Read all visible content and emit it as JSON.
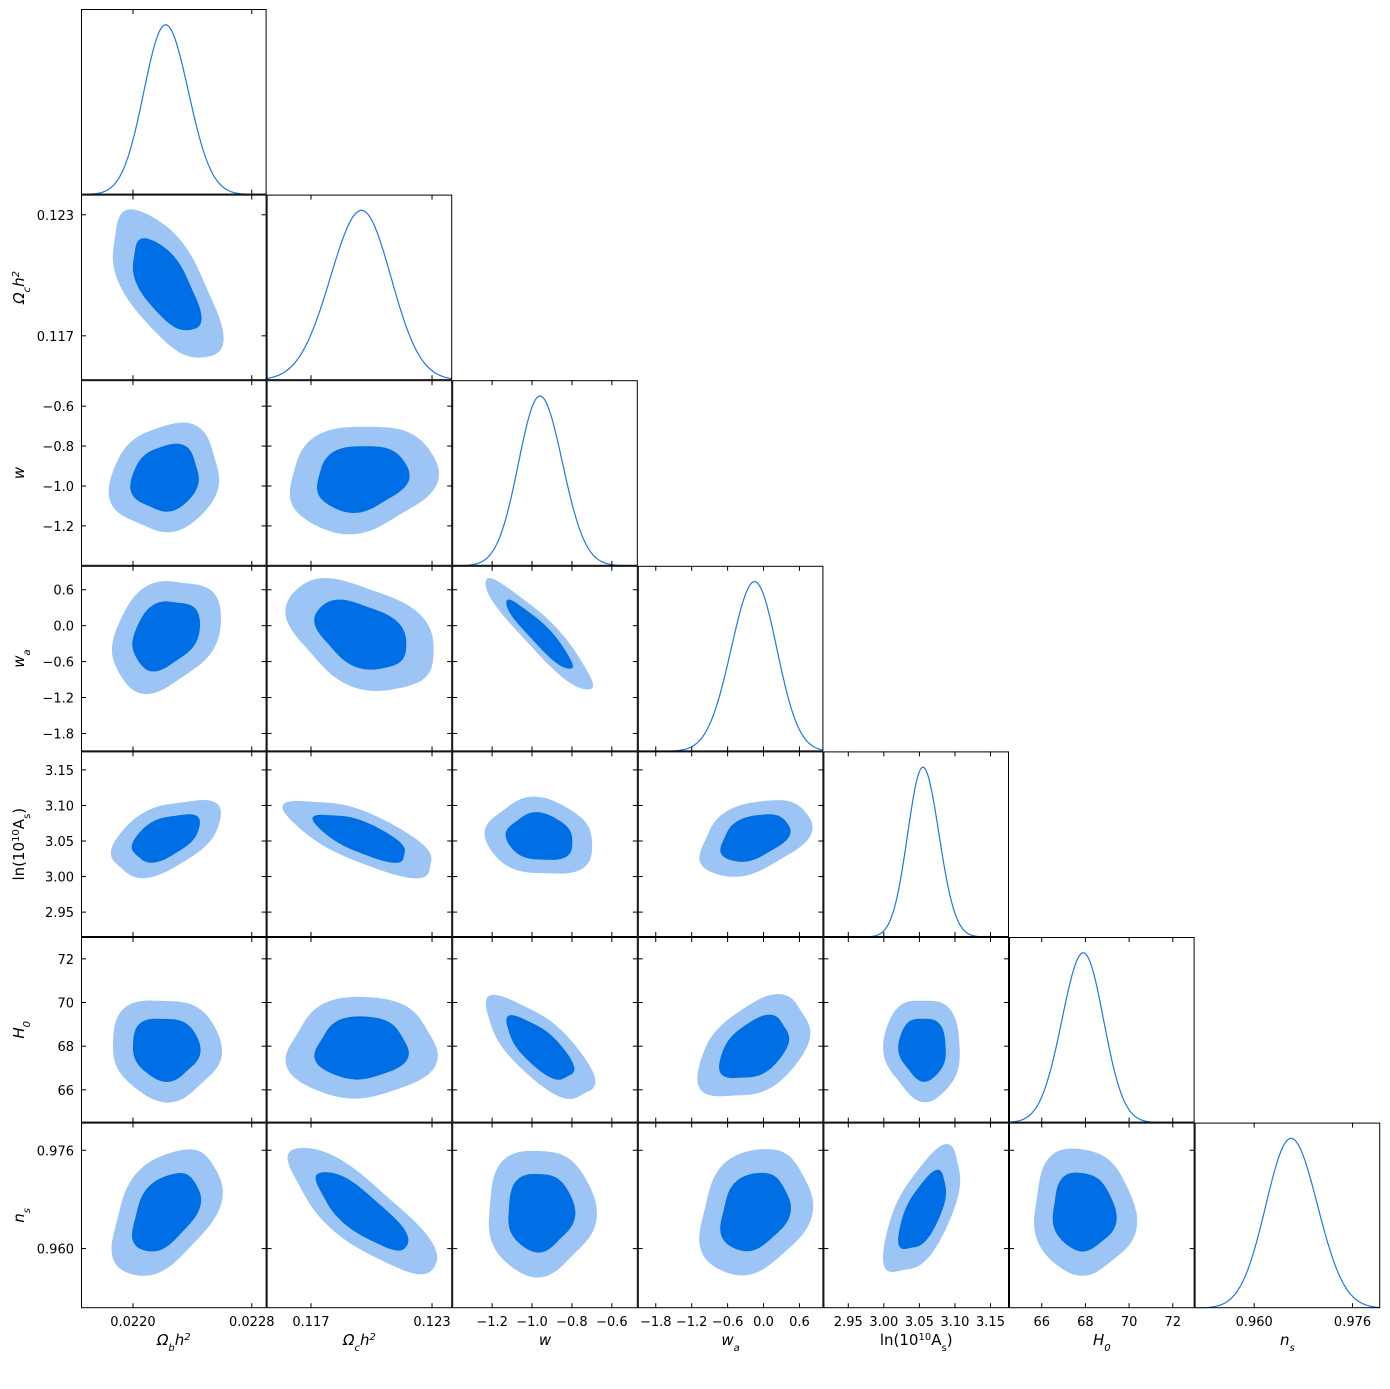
{
  "chart_data": {
    "type": "triangle-plot",
    "series_color": "#1f77e6",
    "contour_inner_color": "#006fe6",
    "contour_outer_color": "#9cc5f5",
    "params": [
      {
        "key": "omegabh2",
        "label_main": "Ω",
        "label_sub": "b",
        "label_tail": "h",
        "label_sup": "2",
        "range": [
          0.02165,
          0.0229
        ],
        "mean": 0.02222,
        "sigma": 0.00015,
        "ticks": [
          0.022,
          0.0228
        ],
        "tick_labels": [
          "0.0220",
          "0.0228"
        ]
      },
      {
        "key": "omegach2",
        "label_main": "Ω",
        "label_sub": "c",
        "label_tail": "h",
        "label_sup": "2",
        "range": [
          0.1148,
          0.124
        ],
        "mean": 0.1195,
        "sigma": 0.0015,
        "ticks": [
          0.117,
          0.123
        ],
        "tick_labels": [
          "0.117",
          "0.123"
        ]
      },
      {
        "key": "w",
        "label_main": "w",
        "label_sub": "",
        "label_tail": "",
        "label_sup": "",
        "range": [
          -1.4,
          -0.47
        ],
        "mean": -0.96,
        "sigma": 0.11,
        "ticks": [
          -1.2,
          -1.0,
          -0.8,
          -0.6
        ],
        "tick_labels": [
          "−1.2",
          "−1.0",
          "−0.8",
          "−0.6"
        ]
      },
      {
        "key": "wa",
        "label_main": "w",
        "label_sub": "a",
        "label_tail": "",
        "label_sup": "",
        "range": [
          -2.1,
          1.0
        ],
        "mean": -0.15,
        "sigma": 0.38,
        "ticks": [
          -1.8,
          -1.2,
          -0.6,
          0.0,
          0.6
        ],
        "tick_labels": [
          "−1.8",
          "−1.2",
          "−0.6",
          "0.0",
          "0.6"
        ]
      },
      {
        "key": "logA",
        "label_main": "ln(10",
        "label_sub": "s",
        "label_tail": "",
        "label_sup": "10",
        "label_mid": "A",
        "range": [
          2.915,
          3.176
        ],
        "mean": 3.055,
        "sigma": 0.022,
        "ticks": [
          2.95,
          3.0,
          3.05,
          3.1,
          3.15
        ],
        "tick_labels": [
          "2.95",
          "3.00",
          "3.05",
          "3.10",
          "3.15"
        ]
      },
      {
        "key": "H0",
        "label_main": "H",
        "label_sub": "0",
        "label_tail": "",
        "label_sup": "",
        "range": [
          64.5,
          73.0
        ],
        "mean": 67.9,
        "sigma": 0.95,
        "ticks": [
          66,
          68,
          70,
          72
        ],
        "tick_labels": [
          "66",
          "68",
          "70",
          "72"
        ]
      },
      {
        "key": "ns",
        "label_main": "n",
        "label_sub": "s",
        "label_tail": "",
        "label_sup": "",
        "range": [
          0.9503,
          0.9805
        ],
        "mean": 0.966,
        "sigma": 0.0042,
        "ticks": [
          0.96,
          0.976
        ],
        "tick_labels": [
          "0.960",
          "0.976"
        ]
      }
    ],
    "correlations": [
      [
        1.0,
        -0.62,
        0.12,
        0.28,
        0.48,
        -0.05,
        0.42
      ],
      [
        -0.62,
        1.0,
        0.15,
        -0.38,
        -0.72,
        0.05,
        -0.8
      ],
      [
        0.12,
        0.15,
        1.0,
        -0.92,
        -0.12,
        -0.72,
        0.02
      ],
      [
        0.28,
        -0.38,
        -0.92,
        1.0,
        0.38,
        0.42,
        0.22
      ],
      [
        0.48,
        -0.72,
        -0.12,
        0.38,
        1.0,
        -0.05,
        0.62
      ],
      [
        -0.05,
        0.05,
        -0.72,
        0.42,
        -0.05,
        1.0,
        -0.05
      ],
      [
        0.42,
        -0.8,
        0.02,
        0.22,
        0.62,
        -0.05,
        1.0
      ]
    ]
  }
}
